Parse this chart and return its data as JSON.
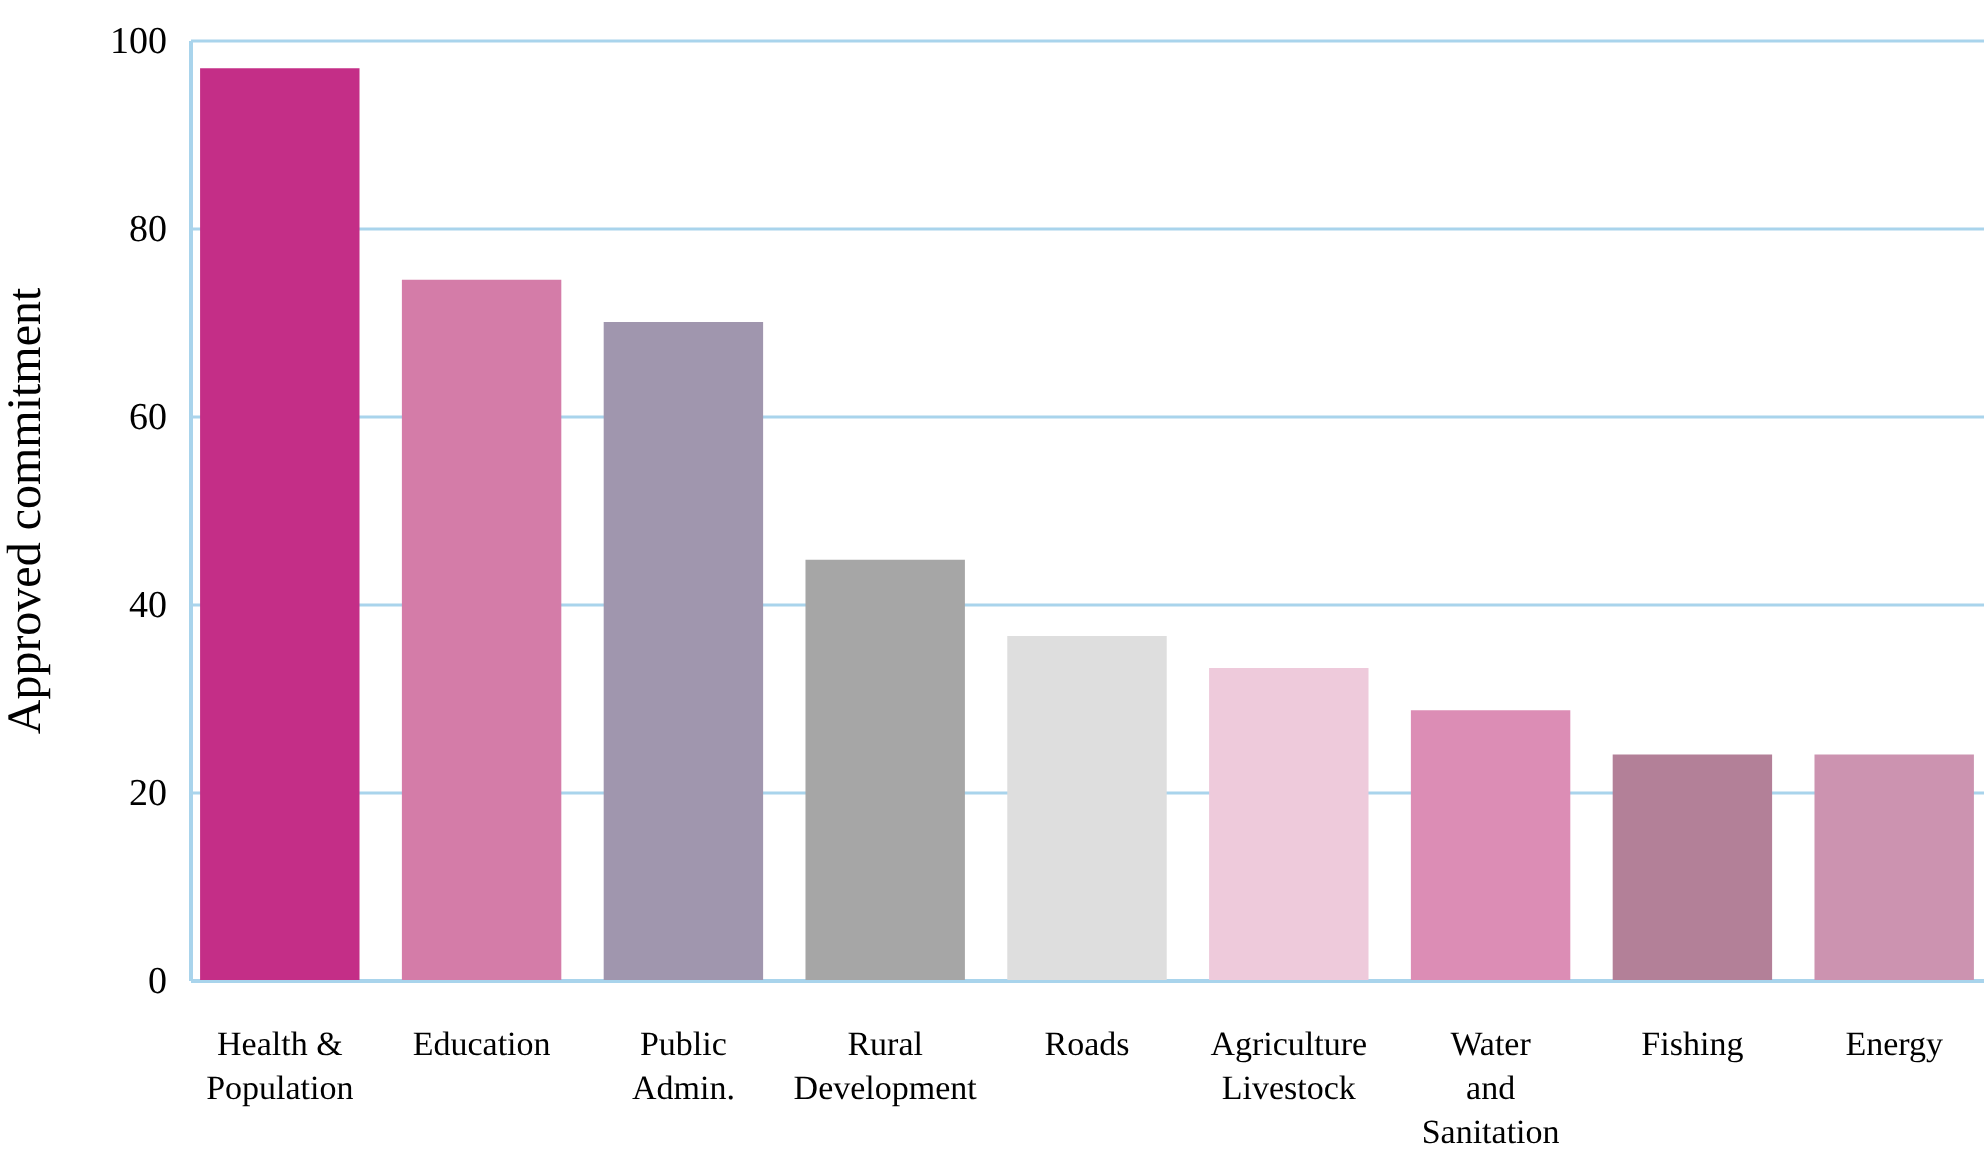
{
  "chart_data": {
    "type": "bar",
    "ylabel": "Approved commitment",
    "categories": [
      "Health & Population",
      "Education",
      "Public Admin.",
      "Rural Development",
      "Roads",
      "Agriculture Livestock",
      "Water and Sanitation",
      "Fishing",
      "Energy"
    ],
    "values": [
      97,
      74.5,
      70,
      44.7,
      36.6,
      33.2,
      28.7,
      24,
      24
    ],
    "colors": [
      "#c42e87",
      "#d47ca8",
      "#a096ae",
      "#a6a6a6",
      "#dedede",
      "#eecadb",
      "#dc8db5",
      "#b38098",
      "#cc93b0"
    ],
    "ylim": [
      0,
      100
    ],
    "yticks": [
      0,
      20,
      40,
      60,
      80,
      100
    ],
    "grid": "y"
  }
}
